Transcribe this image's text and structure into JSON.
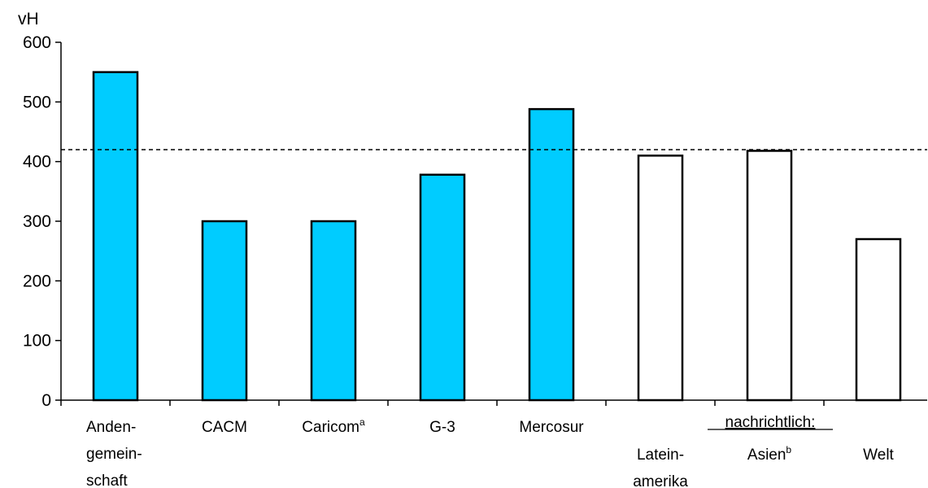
{
  "chart_data": {
    "type": "bar",
    "ylabel": "vH",
    "ylim": [
      0,
      600
    ],
    "yticks": [
      "0",
      "100",
      "200",
      "300",
      "400",
      "500",
      "600"
    ],
    "reference_line": 420,
    "note_label": "nachrichtlich:",
    "colors": {
      "highlight": "#00ccff",
      "other": "#ffffff",
      "outline": "#000000"
    },
    "categories": [
      {
        "lines": [
          "Anden-",
          "gemein-",
          "schaft"
        ],
        "sup": "",
        "value": 550,
        "filled": true
      },
      {
        "lines": [
          "CACM"
        ],
        "sup": "",
        "value": 300,
        "filled": true
      },
      {
        "lines": [
          "Caricom"
        ],
        "sup": "a",
        "value": 300,
        "filled": true
      },
      {
        "lines": [
          "G-3"
        ],
        "sup": "",
        "value": 378,
        "filled": true
      },
      {
        "lines": [
          "Mercosur"
        ],
        "sup": "",
        "value": 488,
        "filled": true
      },
      {
        "lines": [
          "Latein-",
          "amerika"
        ],
        "sup": "",
        "value": 410,
        "filled": false
      },
      {
        "lines": [
          "Asien"
        ],
        "sup": "b",
        "value": 418,
        "filled": false
      },
      {
        "lines": [
          "Welt"
        ],
        "sup": "",
        "value": 270,
        "filled": false
      }
    ]
  }
}
